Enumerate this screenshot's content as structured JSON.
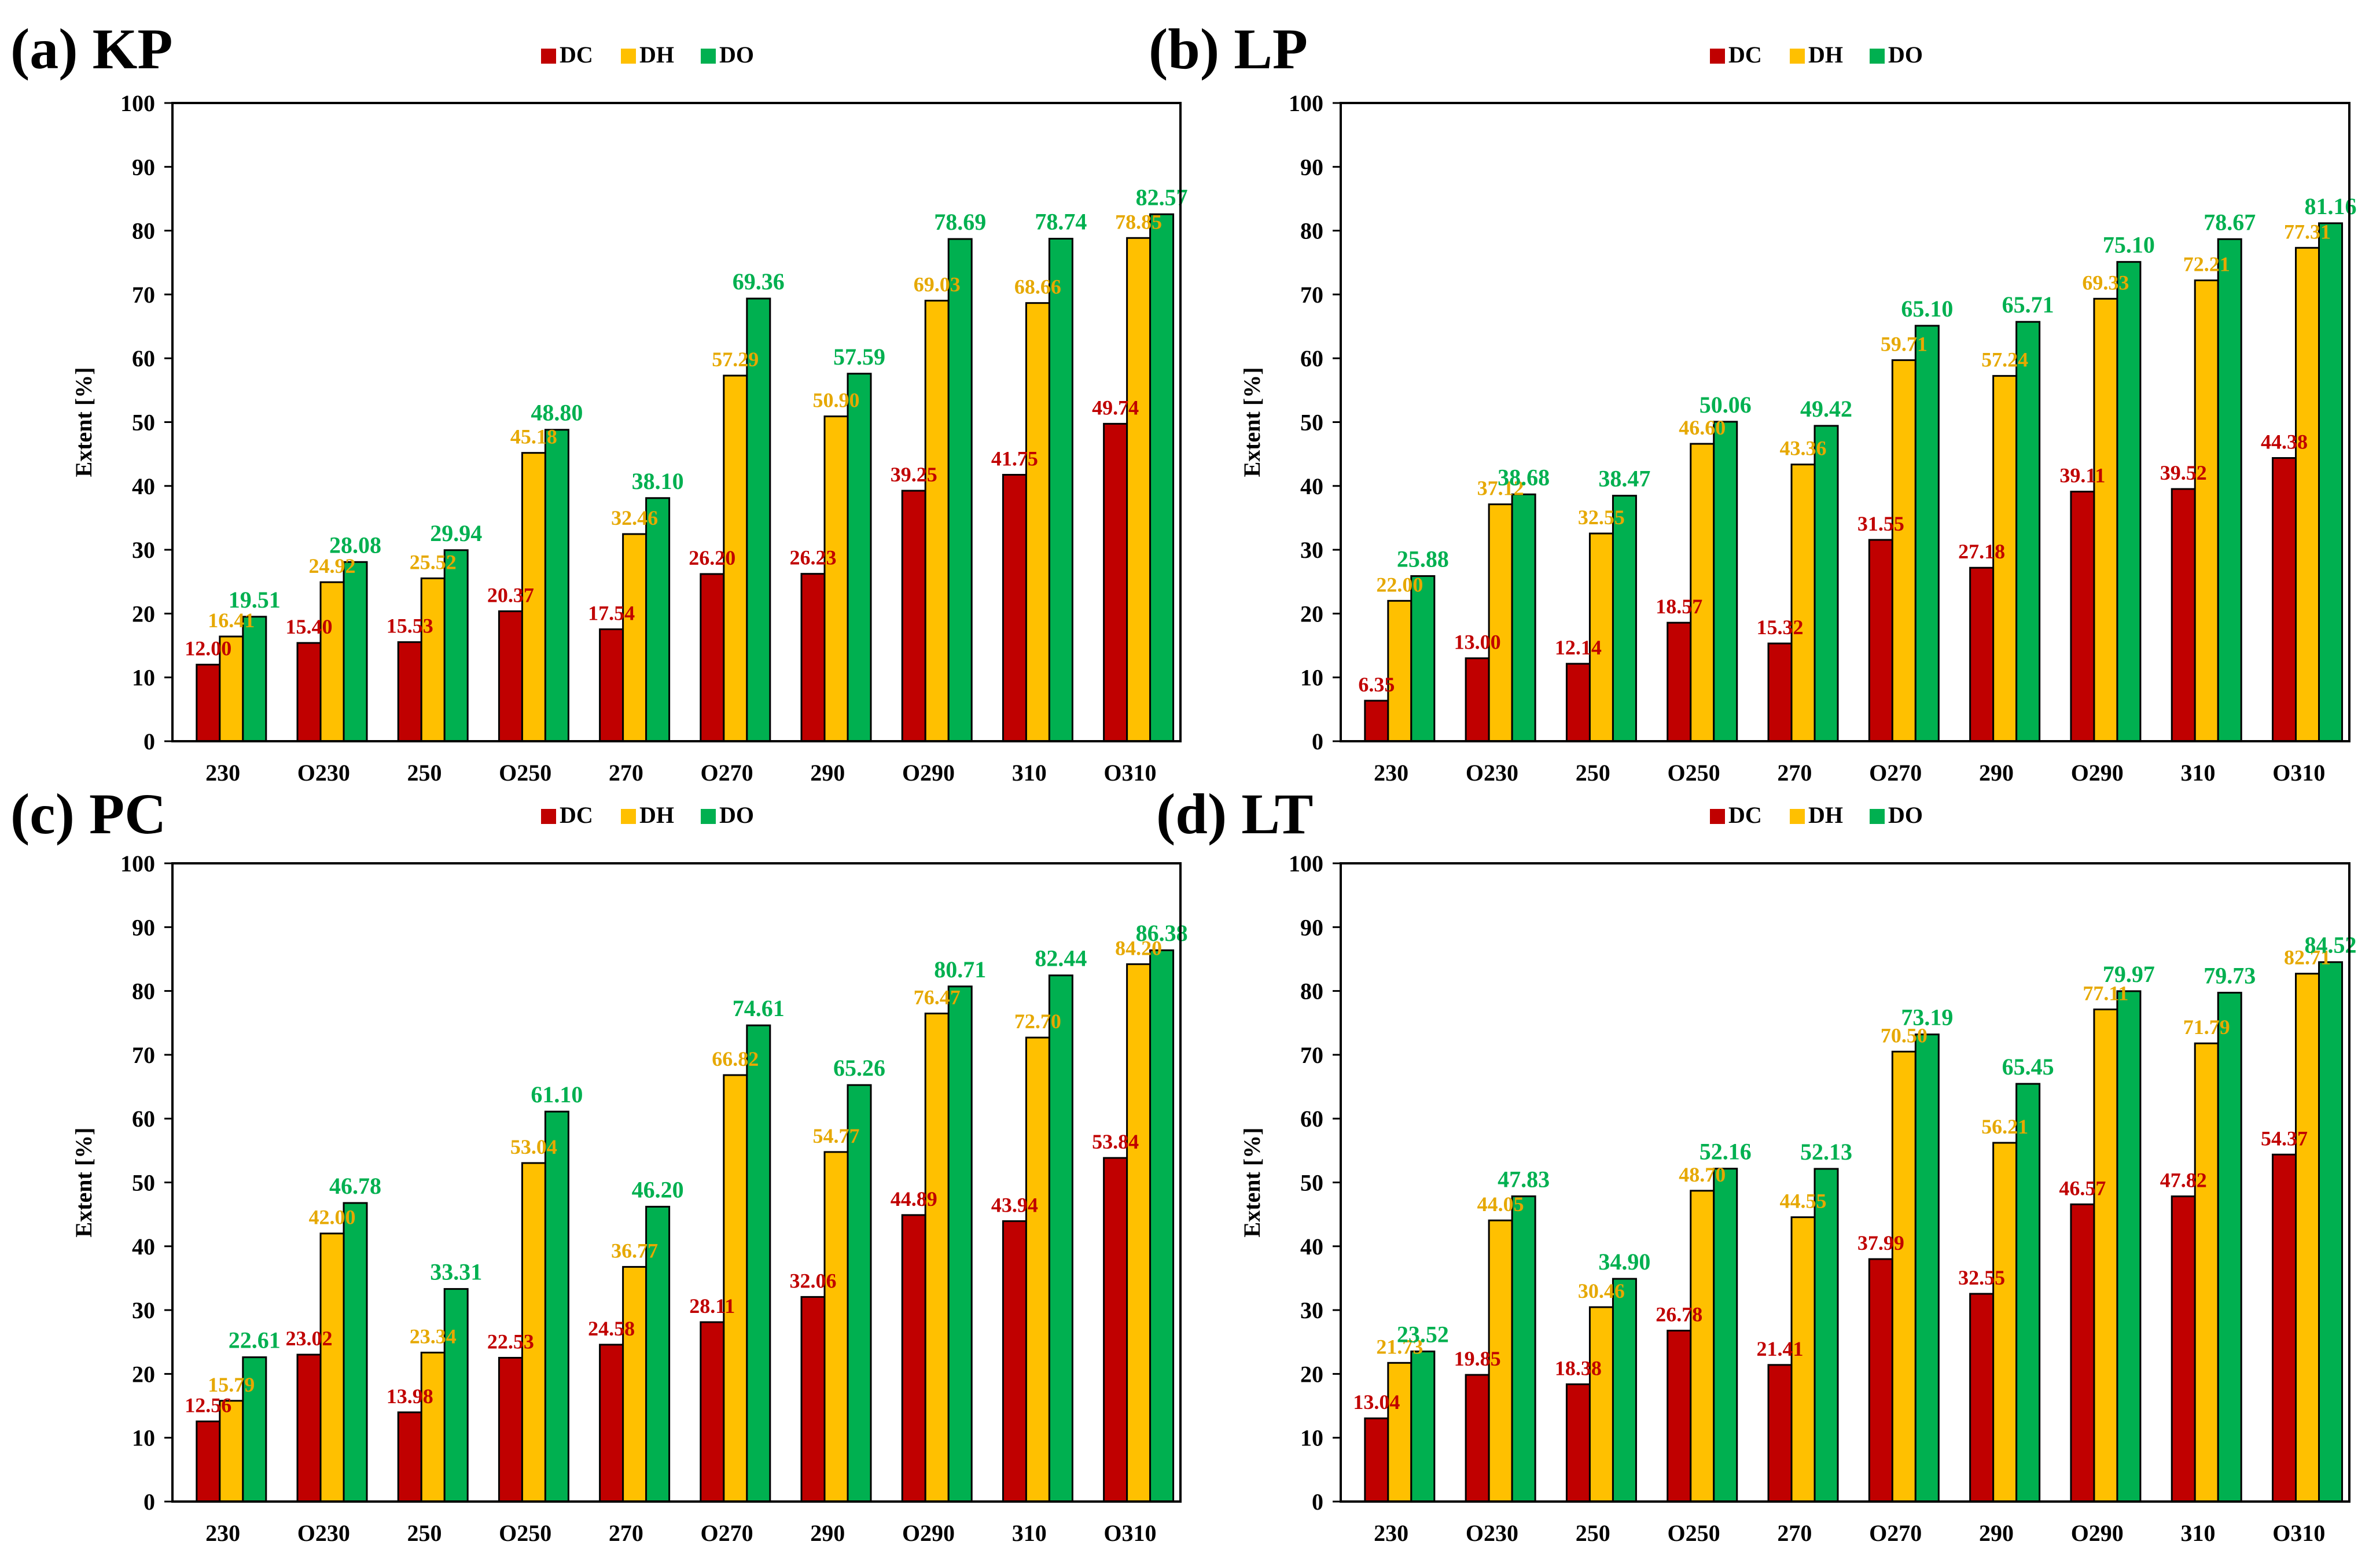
{
  "colors": {
    "DC": "#C00000",
    "DH": "#FFC000",
    "DO": "#00B050",
    "DH_text": "#E6A800",
    "axis": "#000000"
  },
  "chart_data": [
    {
      "type": "bar",
      "title": "(a) KP",
      "xlabel": "",
      "ylabel": "Extent [%]",
      "ylim": [
        0,
        100
      ],
      "yticks": [
        0,
        10,
        20,
        30,
        40,
        50,
        60,
        70,
        80,
        90,
        100
      ],
      "legend": "top-center",
      "categories": [
        "230",
        "O230",
        "250",
        "O250",
        "270",
        "O270",
        "290",
        "O290",
        "310",
        "O310"
      ],
      "series": [
        {
          "name": "DC",
          "values": [
            12.0,
            15.4,
            15.53,
            20.37,
            17.54,
            26.2,
            26.23,
            39.25,
            41.75,
            49.74
          ]
        },
        {
          "name": "DH",
          "values": [
            16.41,
            24.92,
            25.52,
            45.18,
            32.46,
            57.29,
            50.9,
            69.03,
            68.66,
            78.85
          ]
        },
        {
          "name": "DO",
          "values": [
            19.51,
            28.08,
            29.94,
            48.8,
            38.1,
            69.36,
            57.59,
            78.69,
            78.74,
            82.57
          ]
        }
      ]
    },
    {
      "type": "bar",
      "title": "(b) LP",
      "xlabel": "",
      "ylabel": "Extent [%]",
      "ylim": [
        0,
        100
      ],
      "yticks": [
        0,
        10,
        20,
        30,
        40,
        50,
        60,
        70,
        80,
        90,
        100
      ],
      "legend": "top-center",
      "categories": [
        "230",
        "O230",
        "250",
        "O250",
        "270",
        "O270",
        "290",
        "O290",
        "310",
        "O310"
      ],
      "series": [
        {
          "name": "DC",
          "values": [
            6.35,
            13.0,
            12.14,
            18.57,
            15.32,
            31.55,
            27.18,
            39.11,
            39.52,
            44.38
          ]
        },
        {
          "name": "DH",
          "values": [
            22.0,
            37.12,
            32.55,
            46.6,
            43.36,
            59.71,
            57.24,
            69.33,
            72.21,
            77.31
          ]
        },
        {
          "name": "DO",
          "values": [
            25.88,
            38.68,
            38.47,
            50.06,
            49.42,
            65.1,
            65.71,
            75.1,
            78.67,
            81.16
          ]
        }
      ]
    },
    {
      "type": "bar",
      "title": "(c) PC",
      "xlabel": "",
      "ylabel": "Extent [%]",
      "ylim": [
        0,
        100
      ],
      "yticks": [
        0,
        10,
        20,
        30,
        40,
        50,
        60,
        70,
        80,
        90,
        100
      ],
      "legend": "top-center",
      "categories": [
        "230",
        "O230",
        "250",
        "O250",
        "270",
        "O270",
        "290",
        "O290",
        "310",
        "O310"
      ],
      "series": [
        {
          "name": "DC",
          "values": [
            12.56,
            23.02,
            13.98,
            22.53,
            24.58,
            28.11,
            32.06,
            44.89,
            43.94,
            53.84
          ]
        },
        {
          "name": "DH",
          "values": [
            15.79,
            42.0,
            23.34,
            53.04,
            36.77,
            66.82,
            54.77,
            76.47,
            72.7,
            84.2
          ]
        },
        {
          "name": "DO",
          "values": [
            22.61,
            46.78,
            33.31,
            61.1,
            46.2,
            74.61,
            65.26,
            80.71,
            82.44,
            86.38
          ]
        }
      ]
    },
    {
      "type": "bar",
      "title": "(d) LT",
      "xlabel": "",
      "ylabel": "Extent [%]",
      "ylim": [
        0,
        100
      ],
      "yticks": [
        0,
        10,
        20,
        30,
        40,
        50,
        60,
        70,
        80,
        90,
        100
      ],
      "legend": "top-center",
      "categories": [
        "230",
        "O230",
        "250",
        "O250",
        "270",
        "O270",
        "290",
        "O290",
        "310",
        "O310"
      ],
      "series": [
        {
          "name": "DC",
          "values": [
            13.04,
            19.85,
            18.38,
            26.78,
            21.41,
            37.99,
            32.55,
            46.57,
            47.82,
            54.37
          ]
        },
        {
          "name": "DH",
          "values": [
            21.73,
            44.05,
            30.46,
            48.7,
            44.55,
            70.5,
            56.21,
            77.11,
            71.79,
            82.71
          ]
        },
        {
          "name": "DO",
          "values": [
            23.52,
            47.83,
            34.9,
            52.16,
            52.13,
            73.19,
            65.45,
            79.97,
            79.73,
            84.52
          ]
        }
      ]
    }
  ]
}
